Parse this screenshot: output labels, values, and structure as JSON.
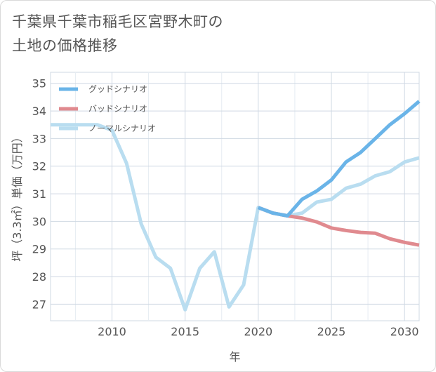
{
  "title_line1": "千葉県千葉市稲毛区宮野木町の",
  "title_line2": "土地の価格推移",
  "chart_data": {
    "type": "line",
    "xlabel": "年",
    "ylabel": "坪（3.3㎡）単価（万円）",
    "xlim": [
      2005.8,
      2031
    ],
    "ylim": [
      26.4,
      35.4
    ],
    "xticks": [
      2010,
      2015,
      2020,
      2025,
      2030
    ],
    "yticks": [
      27,
      28,
      29,
      30,
      31,
      32,
      33,
      34,
      35
    ],
    "grid": true,
    "legend_position": "top-left",
    "series": [
      {
        "name": "グッドシナリオ",
        "color": "#6ab4e8",
        "x": [
          2020,
          2021,
          2022,
          2023,
          2024,
          2025,
          2026,
          2027,
          2028,
          2029,
          2030,
          2031
        ],
        "values": [
          30.5,
          30.3,
          30.2,
          30.8,
          31.1,
          31.5,
          32.15,
          32.5,
          33.0,
          33.5,
          33.9,
          34.35
        ]
      },
      {
        "name": "バッドシナリオ",
        "color": "#e08a8f",
        "x": [
          2020,
          2021,
          2022,
          2023,
          2024,
          2025,
          2026,
          2027,
          2028,
          2029,
          2030,
          2031
        ],
        "values": [
          30.5,
          30.3,
          30.2,
          30.12,
          29.98,
          29.76,
          29.67,
          29.6,
          29.57,
          29.37,
          29.24,
          29.14
        ]
      },
      {
        "name": "ノーマルシナリオ",
        "color": "#b9ddf0",
        "x": [
          2005.8,
          2009,
          2010,
          2011,
          2012,
          2013,
          2014,
          2015,
          2016,
          2017,
          2018,
          2019,
          2020,
          2021,
          2022,
          2023,
          2024,
          2025,
          2026,
          2027,
          2028,
          2029,
          2030,
          2031
        ],
        "values": [
          33.5,
          33.5,
          33.3,
          32.1,
          29.9,
          28.7,
          28.3,
          26.8,
          28.3,
          28.9,
          26.9,
          27.7,
          30.5,
          30.3,
          30.2,
          30.3,
          30.7,
          30.8,
          31.2,
          31.35,
          31.65,
          31.8,
          32.15,
          32.3
        ]
      }
    ]
  }
}
